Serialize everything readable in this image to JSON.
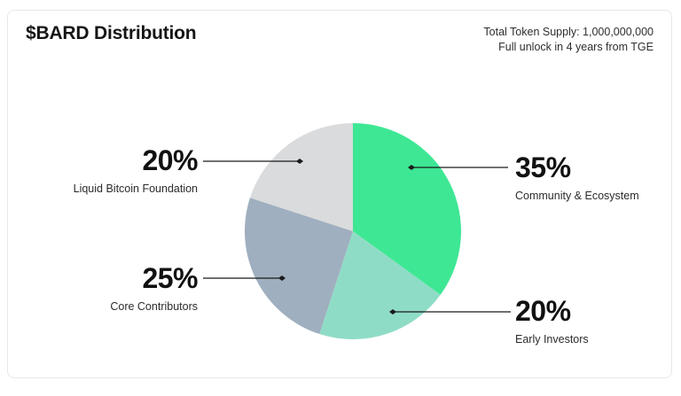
{
  "header": {
    "title": "$BARD Distribution",
    "supply_line1": "Total Token Supply: 1,000,000,000",
    "supply_line2": "Full unlock in 4 years from TGE"
  },
  "chart_data": {
    "type": "pie",
    "title": "$BARD Distribution",
    "start_angle_deg": 0,
    "direction": "clockwise",
    "total_pct": 100,
    "slices": [
      {
        "label": "Community & Ecosystem",
        "value_pct": 35,
        "pct_text": "35%",
        "color": "#3EE794"
      },
      {
        "label": "Early Investors",
        "value_pct": 20,
        "pct_text": "20%",
        "color": "#8FDCC6"
      },
      {
        "label": "Core Contributors",
        "value_pct": 25,
        "pct_text": "25%",
        "color": "#9FAFBF"
      },
      {
        "label": "Liquid Bitcoin Foundation",
        "value_pct": 20,
        "pct_text": "20%",
        "color": "#D9DBDC"
      }
    ],
    "legend_position": "callouts",
    "line_color": "#1a1a1a"
  }
}
